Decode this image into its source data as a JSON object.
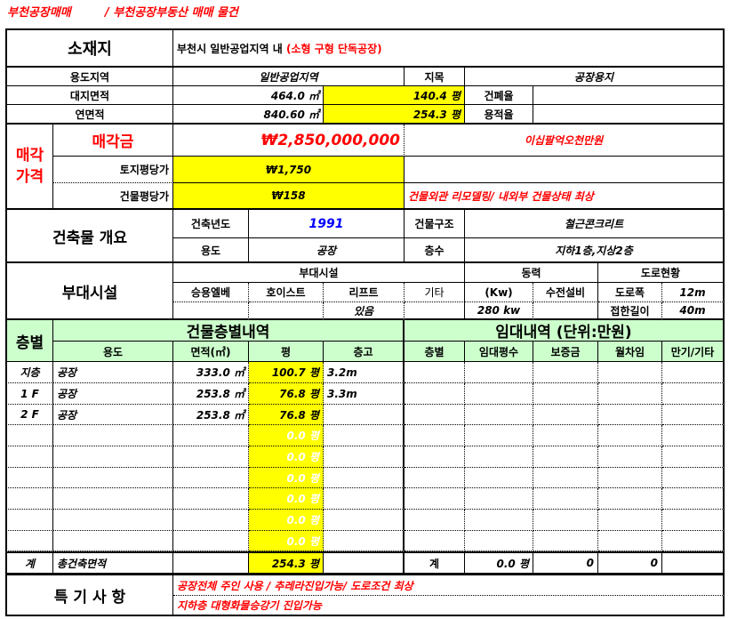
{
  "title": {
    "left": "부천공장매매",
    "right": "/ 부천공장부동산 매매 물건"
  },
  "location": {
    "label": "소재지",
    "value": "부천시  일반공업지역 내",
    "note": "(소형 구형 단독공장)"
  },
  "land": {
    "zoning_label": "용도지역",
    "zoning_value": "일반공업지역",
    "category_label": "지목",
    "category_value": "공장용지",
    "site_area_label": "대지면적",
    "site_area_m2": "464.0 ㎡",
    "site_area_pyeong": "140.4 평",
    "coverage_label": "건폐율",
    "coverage_value": "",
    "floor_area_label": "연면적",
    "floor_area_m2": "840.60 ㎡",
    "floor_area_pyeong": "254.3 평",
    "far_label": "용적율",
    "far_value": ""
  },
  "price": {
    "section_label": "매각\n가격",
    "sale_label": "매각금",
    "sale_value": "₩2,850,000,000",
    "sale_words": "이십팔억오천만원",
    "land_unit_label": "토지평당가",
    "land_unit_value": "₩1,750",
    "building_unit_label": "건물평당가",
    "building_unit_value": "₩158",
    "building_note": "건물외관 리모델링/  내외부 건물상태 최상"
  },
  "building": {
    "label": "건축물 개요",
    "year_label": "건축년도",
    "year_value": "1991",
    "structure_label": "건물구조",
    "structure_value": "철근콘크리트",
    "use_label": "용도",
    "use_value": "공장",
    "floors_label": "층수",
    "floors_value": "지하1층,지상2층"
  },
  "facilities": {
    "label": "부대시설",
    "group_label": "부대시설",
    "power_label": "동력",
    "road_label": "도로현황",
    "elevator_label": "승용엘베",
    "hoist_label": "호이스트",
    "lift_label": "리프트",
    "etc_label": "기타",
    "kw_label": "(Kw)",
    "substation_label": "수전설비",
    "road_width_label": "도로폭",
    "road_width_value": "12m",
    "elevator_value": "",
    "hoist_value": "",
    "lift_value": "있음",
    "etc_value": "",
    "kw_value": "280  kw",
    "substation_value": "",
    "frontage_label": "접한길이",
    "frontage_value": "40m"
  },
  "floors_table": {
    "floor_header": "층별",
    "building_header": "건물층별내역",
    "lease_header": "임대내역      (단위:만원)",
    "columns": [
      "용도",
      "면적(㎡)",
      "평",
      "층고",
      "층별",
      "임대평수",
      "보증금",
      "월차임",
      "만기/기타"
    ],
    "rows": [
      [
        "지층",
        "공장",
        "333.0 ㎡",
        "100.7 평",
        "3.2m",
        "",
        "",
        "",
        "",
        ""
      ],
      [
        "1  F",
        "공장",
        "253.8 ㎡",
        "76.8 평",
        "3.3m",
        "",
        "",
        "",
        "",
        ""
      ],
      [
        "2  F",
        "공장",
        "253.8 ㎡",
        "76.8 평",
        "",
        "",
        "",
        "",
        "",
        ""
      ],
      [
        "",
        "",
        "",
        "0.0 평",
        "",
        "",
        "",
        "",
        "",
        ""
      ],
      [
        "",
        "",
        "",
        "0.0 평",
        "",
        "",
        "",
        "",
        "",
        ""
      ],
      [
        "",
        "",
        "",
        "0.0 평",
        "",
        "",
        "",
        "",
        "",
        ""
      ],
      [
        "",
        "",
        "",
        "0.0 평",
        "",
        "",
        "",
        "",
        "",
        ""
      ],
      [
        "",
        "",
        "",
        "0.0 평",
        "",
        "",
        "",
        "",
        "",
        ""
      ],
      [
        "",
        "",
        "",
        "0.0 평",
        "",
        "",
        "",
        "",
        "",
        ""
      ]
    ],
    "total_row": [
      "계",
      "총건축면적",
      "",
      "254.3 평",
      "",
      "계",
      "0.0 평",
      "0",
      "0",
      ""
    ]
  },
  "remarks": {
    "label": "특 기 사 항",
    "line1": "공장전체 주인 사용 /  추레라진입가능/  도로조건 최상",
    "line2": "지하층 대형화물승강기 진입가능"
  },
  "colors": {
    "highlight": "#ffff00",
    "header_green": "#ccffcc",
    "accent_red": "#ff0000",
    "year_blue": "#0000ff"
  }
}
